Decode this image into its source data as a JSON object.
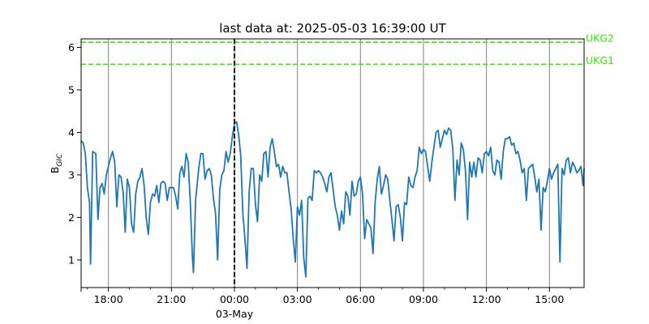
{
  "chart_data": {
    "type": "line",
    "title": "last data at: 2025-05-03 16:39:00 UT",
    "ylabel_main": "B",
    "ylabel_sub": "GIC",
    "xlabel": "",
    "x_range_hours": [
      -7.3,
      16.65
    ],
    "ylim": [
      0.35,
      6.2
    ],
    "yticks": [
      1,
      2,
      3,
      4,
      5,
      6
    ],
    "xticks": [
      {
        "hour": -6,
        "label": "18:00"
      },
      {
        "hour": -3,
        "label": "21:00"
      },
      {
        "hour": 0,
        "label": "00:00"
      },
      {
        "hour": 3,
        "label": "03:00"
      },
      {
        "hour": 6,
        "label": "06:00"
      },
      {
        "hour": 9,
        "label": "09:00"
      },
      {
        "hour": 12,
        "label": "12:00"
      },
      {
        "hour": 15,
        "label": "15:00"
      }
    ],
    "date_label": "03-May",
    "grid": "vertical",
    "thresholds": [
      {
        "name": "UKG2",
        "value": 6.12,
        "color": "#33ee00"
      },
      {
        "name": "UKG1",
        "value": 5.6,
        "color": "#33ee00"
      }
    ],
    "series": [
      {
        "color": "#1f77b4",
        "points": [
          [
            -7.3,
            3.8
          ],
          [
            -7.2,
            3.75
          ],
          [
            -7.1,
            3.5
          ],
          [
            -7.0,
            2.7
          ],
          [
            -6.9,
            2.35
          ],
          [
            -6.85,
            0.9
          ],
          [
            -6.75,
            3.55
          ],
          [
            -6.6,
            3.5
          ],
          [
            -6.5,
            1.95
          ],
          [
            -6.4,
            2.7
          ],
          [
            -6.3,
            2.8
          ],
          [
            -6.2,
            2.55
          ],
          [
            -6.1,
            3.0
          ],
          [
            -5.9,
            3.4
          ],
          [
            -5.8,
            3.55
          ],
          [
            -5.7,
            3.3
          ],
          [
            -5.6,
            2.25
          ],
          [
            -5.5,
            3.0
          ],
          [
            -5.4,
            2.95
          ],
          [
            -5.3,
            2.6
          ],
          [
            -5.2,
            1.65
          ],
          [
            -5.1,
            2.9
          ],
          [
            -5.0,
            2.7
          ],
          [
            -4.9,
            1.85
          ],
          [
            -4.8,
            1.65
          ],
          [
            -4.7,
            2.55
          ],
          [
            -4.6,
            2.85
          ],
          [
            -4.5,
            2.95
          ],
          [
            -4.4,
            3.15
          ],
          [
            -4.3,
            2.75
          ],
          [
            -4.2,
            2.0
          ],
          [
            -4.1,
            1.6
          ],
          [
            -4.0,
            2.35
          ],
          [
            -3.9,
            2.55
          ],
          [
            -3.8,
            2.5
          ],
          [
            -3.7,
            2.75
          ],
          [
            -3.6,
            2.35
          ],
          [
            -3.5,
            2.8
          ],
          [
            -3.4,
            2.85
          ],
          [
            -3.3,
            2.8
          ],
          [
            -3.2,
            2.4
          ],
          [
            -3.1,
            2.7
          ],
          [
            -2.9,
            2.7
          ],
          [
            -2.8,
            2.5
          ],
          [
            -2.7,
            2.2
          ],
          [
            -2.6,
            3.05
          ],
          [
            -2.5,
            3.2
          ],
          [
            -2.4,
            2.95
          ],
          [
            -2.3,
            3.5
          ],
          [
            -2.2,
            3.3
          ],
          [
            -2.1,
            2.35
          ],
          [
            -2.0,
            1.05
          ],
          [
            -1.95,
            0.7
          ],
          [
            -1.85,
            2.4
          ],
          [
            -1.7,
            3.15
          ],
          [
            -1.6,
            3.5
          ],
          [
            -1.5,
            3.5
          ],
          [
            -1.4,
            2.9
          ],
          [
            -1.3,
            3.1
          ],
          [
            -1.2,
            3.15
          ],
          [
            -1.1,
            3.0
          ],
          [
            -1.0,
            2.45
          ],
          [
            -0.9,
            2.1
          ],
          [
            -0.8,
            1.0
          ],
          [
            -0.7,
            2.65
          ],
          [
            -0.6,
            3.0
          ],
          [
            -0.5,
            3.1
          ],
          [
            -0.4,
            3.55
          ],
          [
            -0.3,
            3.3
          ],
          [
            -0.2,
            3.5
          ],
          [
            -0.1,
            3.9
          ],
          [
            0.0,
            4.2
          ],
          [
            0.1,
            4.25
          ],
          [
            0.2,
            3.95
          ],
          [
            0.3,
            3.45
          ],
          [
            0.4,
            2.1
          ],
          [
            0.5,
            1.5
          ],
          [
            0.6,
            0.8
          ],
          [
            0.7,
            2.6
          ],
          [
            0.8,
            3.15
          ],
          [
            0.9,
            3.15
          ],
          [
            1.0,
            2.3
          ],
          [
            1.1,
            1.9
          ],
          [
            1.2,
            3.0
          ],
          [
            1.3,
            2.85
          ],
          [
            1.4,
            3.5
          ],
          [
            1.5,
            3.55
          ],
          [
            1.6,
            2.95
          ],
          [
            1.7,
            3.65
          ],
          [
            1.8,
            3.85
          ],
          [
            1.9,
            3.55
          ],
          [
            2.0,
            3.2
          ],
          [
            2.1,
            3.25
          ],
          [
            2.2,
            2.95
          ],
          [
            2.3,
            3.2
          ],
          [
            2.4,
            3.05
          ],
          [
            2.5,
            3.05
          ],
          [
            2.6,
            2.6
          ],
          [
            2.7,
            2.2
          ],
          [
            2.8,
            1.5
          ],
          [
            2.9,
            0.95
          ],
          [
            3.0,
            2.25
          ],
          [
            3.1,
            2.05
          ],
          [
            3.2,
            2.4
          ],
          [
            3.3,
            1.05
          ],
          [
            3.4,
            0.6
          ],
          [
            3.5,
            2.45
          ],
          [
            3.6,
            2.5
          ],
          [
            3.7,
            2.4
          ],
          [
            3.8,
            3.1
          ],
          [
            3.9,
            3.05
          ],
          [
            4.0,
            3.1
          ],
          [
            4.1,
            3.05
          ],
          [
            4.2,
            2.95
          ],
          [
            4.3,
            2.8
          ],
          [
            4.4,
            2.6
          ],
          [
            4.5,
            2.95
          ],
          [
            4.6,
            3.05
          ],
          [
            4.7,
            2.65
          ],
          [
            4.8,
            2.25
          ],
          [
            4.9,
            2.05
          ],
          [
            5.0,
            1.7
          ],
          [
            5.1,
            2.15
          ],
          [
            5.2,
            1.85
          ],
          [
            5.3,
            2.6
          ],
          [
            5.4,
            2.5
          ],
          [
            5.5,
            2.05
          ],
          [
            5.6,
            2.85
          ],
          [
            5.7,
            2.5
          ],
          [
            5.8,
            2.55
          ],
          [
            5.9,
            2.85
          ],
          [
            6.0,
            2.95
          ],
          [
            6.1,
            2.55
          ],
          [
            6.2,
            1.5
          ],
          [
            6.3,
            1.95
          ],
          [
            6.4,
            1.85
          ],
          [
            6.5,
            1.75
          ],
          [
            6.6,
            1.15
          ],
          [
            6.7,
            2.35
          ],
          [
            6.8,
            2.9
          ],
          [
            6.9,
            3.2
          ],
          [
            7.0,
            2.55
          ],
          [
            7.1,
            2.75
          ],
          [
            7.2,
            3.0
          ],
          [
            7.3,
            2.9
          ],
          [
            7.4,
            2.4
          ],
          [
            7.5,
            1.95
          ],
          [
            7.6,
            1.45
          ],
          [
            7.7,
            2.25
          ],
          [
            7.8,
            2.3
          ],
          [
            7.9,
            2.0
          ],
          [
            8.0,
            1.45
          ],
          [
            8.1,
            2.35
          ],
          [
            8.2,
            2.3
          ],
          [
            8.3,
            2.95
          ],
          [
            8.4,
            2.75
          ],
          [
            8.5,
            2.7
          ],
          [
            8.6,
            2.95
          ],
          [
            8.7,
            3.1
          ],
          [
            8.8,
            3.65
          ],
          [
            8.9,
            3.5
          ],
          [
            9.0,
            3.6
          ],
          [
            9.1,
            3.55
          ],
          [
            9.2,
            3.2
          ],
          [
            9.3,
            2.85
          ],
          [
            9.4,
            3.3
          ],
          [
            9.5,
            3.65
          ],
          [
            9.6,
            4.0
          ],
          [
            9.7,
            4.05
          ],
          [
            9.8,
            3.65
          ],
          [
            9.9,
            3.85
          ],
          [
            10.0,
            4.05
          ],
          [
            10.1,
            3.95
          ],
          [
            10.2,
            4.1
          ],
          [
            10.3,
            4.05
          ],
          [
            10.4,
            3.6
          ],
          [
            10.5,
            2.4
          ],
          [
            10.6,
            3.35
          ],
          [
            10.7,
            3.0
          ],
          [
            10.8,
            3.75
          ],
          [
            10.9,
            3.6
          ],
          [
            11.0,
            3.1
          ],
          [
            11.1,
            1.95
          ],
          [
            11.2,
            3.3
          ],
          [
            11.3,
            2.95
          ],
          [
            11.4,
            3.3
          ],
          [
            11.5,
            2.95
          ],
          [
            11.6,
            3.4
          ],
          [
            11.7,
            3.35
          ],
          [
            11.8,
            3.05
          ],
          [
            11.9,
            3.5
          ],
          [
            12.0,
            3.55
          ],
          [
            12.1,
            3.45
          ],
          [
            12.2,
            3.65
          ],
          [
            12.3,
            3.1
          ],
          [
            12.4,
            3.0
          ],
          [
            12.5,
            3.35
          ],
          [
            12.6,
            3.3
          ],
          [
            12.7,
            2.9
          ],
          [
            12.8,
            3.55
          ],
          [
            12.9,
            3.85
          ],
          [
            13.0,
            3.85
          ],
          [
            13.1,
            3.9
          ],
          [
            13.2,
            3.7
          ],
          [
            13.3,
            3.75
          ],
          [
            13.4,
            3.5
          ],
          [
            13.5,
            3.55
          ],
          [
            13.6,
            3.35
          ],
          [
            13.7,
            3.05
          ],
          [
            13.8,
            3.15
          ],
          [
            13.9,
            2.4
          ],
          [
            14.0,
            3.15
          ],
          [
            14.1,
            3.2
          ],
          [
            14.2,
            3.25
          ],
          [
            14.3,
            2.95
          ],
          [
            14.4,
            2.6
          ],
          [
            14.5,
            2.9
          ],
          [
            14.6,
            1.7
          ],
          [
            14.7,
            2.7
          ],
          [
            14.8,
            2.6
          ],
          [
            14.9,
            2.85
          ],
          [
            15.0,
            3.15
          ],
          [
            15.1,
            2.9
          ],
          [
            15.2,
            3.05
          ],
          [
            15.3,
            3.15
          ],
          [
            15.4,
            3.25
          ],
          [
            15.5,
            0.95
          ],
          [
            15.6,
            3.15
          ],
          [
            15.7,
            3.0
          ],
          [
            15.8,
            3.35
          ],
          [
            15.9,
            3.4
          ],
          [
            16.0,
            3.05
          ],
          [
            16.1,
            3.3
          ],
          [
            16.2,
            3.2
          ],
          [
            16.3,
            3.05
          ],
          [
            16.4,
            3.1
          ],
          [
            16.5,
            3.2
          ],
          [
            16.6,
            2.75
          ],
          [
            16.65,
            3.15
          ]
        ]
      }
    ]
  }
}
